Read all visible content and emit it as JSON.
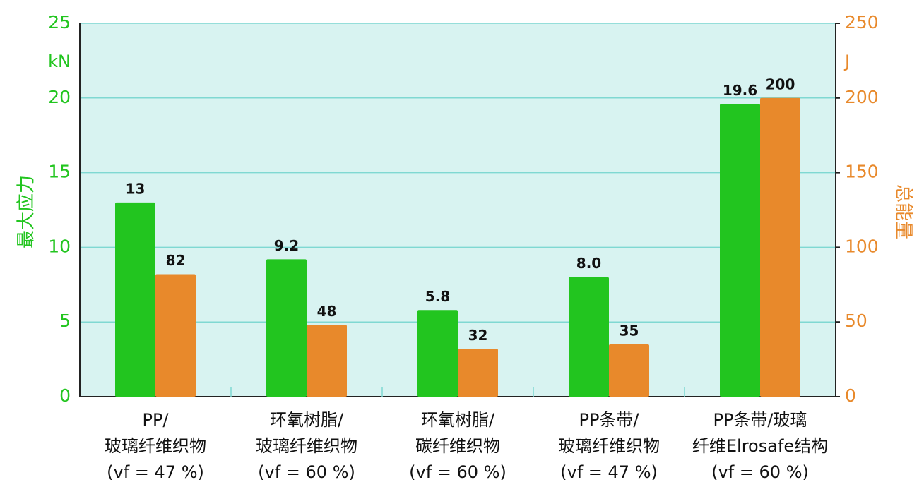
{
  "chart_data": {
    "type": "bar",
    "categories": [
      [
        "PP/",
        "玻璃纤维织物",
        "(vf = 47 %)"
      ],
      [
        "环氧树脂/",
        "玻璃纤维织物",
        "(vf = 60 %)"
      ],
      [
        "环氧树脂/",
        "碳纤维织物",
        "(vf = 60 %)"
      ],
      [
        "PP条带/",
        "玻璃纤维织物",
        "(vf = 47 %)"
      ],
      [
        "PP条带/玻璃",
        "纤维Elrosafe结构",
        "(vf = 60 %)"
      ]
    ],
    "series": [
      {
        "color": "#22c51f",
        "values": [
          13,
          9.2,
          5.8,
          8,
          19.6
        ],
        "value_labels": [
          "13",
          "9.2",
          "5.8",
          "8.0",
          "19.6"
        ]
      },
      {
        "color": "#e8892b",
        "axis": "y2",
        "values": [
          82,
          48,
          32,
          35,
          200
        ]
      }
    ],
    "y_label": "最大应力",
    "y_unit": "kN",
    "y_color": "#22c51f",
    "y2_label": "总能量",
    "y2_unit": "J",
    "y2_color": "#e8892b",
    "ylim": [
      0,
      25
    ],
    "yticks": [
      0,
      5,
      10,
      15,
      20,
      25
    ],
    "y2lim": [
      0,
      250
    ],
    "y2ticks": [
      0,
      50,
      100,
      150,
      200,
      250
    ],
    "grid": true
  }
}
